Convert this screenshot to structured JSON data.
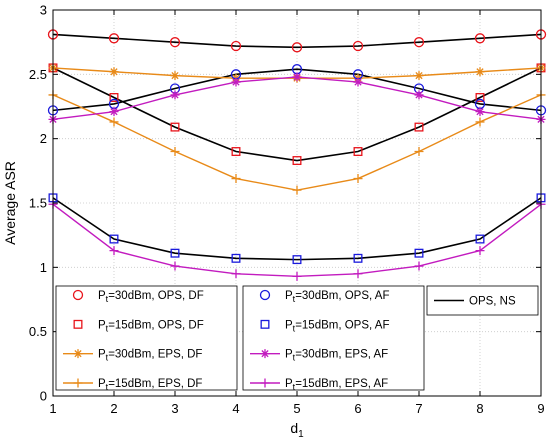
{
  "chart_data": {
    "type": "line",
    "title": "",
    "xlabel": "d",
    "xlabel_sub": "1",
    "ylabel": "Average ASR",
    "xlim": [
      1,
      9
    ],
    "ylim": [
      0,
      3
    ],
    "xticks": [
      "1",
      "2",
      "3",
      "4",
      "5",
      "6",
      "7",
      "8",
      "9"
    ],
    "yticks": [
      "0",
      "0.5",
      "1",
      "1.5",
      "2",
      "2.5",
      "3"
    ],
    "grid": true,
    "legend_placement": "bottom",
    "x": [
      1,
      2,
      3,
      4,
      5,
      6,
      7,
      8,
      9
    ],
    "series": [
      {
        "name": "=30dBm, OPS, DF",
        "color": "#e8141b",
        "marker": "circle",
        "line": false,
        "values": [
          2.81,
          2.78,
          2.75,
          2.72,
          2.71,
          2.72,
          2.75,
          2.78,
          2.81
        ]
      },
      {
        "name": "=15dBm, OPS, DF",
        "color": "#e8141b",
        "marker": "square",
        "line": false,
        "values": [
          2.55,
          2.32,
          2.09,
          1.9,
          1.83,
          1.9,
          2.09,
          2.32,
          2.55
        ]
      },
      {
        "name": "=30dBm, EPS, DF",
        "color": "#e88a18",
        "marker": "star",
        "line": true,
        "values": [
          2.55,
          2.52,
          2.49,
          2.47,
          2.47,
          2.47,
          2.49,
          2.52,
          2.55
        ]
      },
      {
        "name": "=15dBm, EPS, DF",
        "color": "#e88a18",
        "marker": "plus",
        "line": true,
        "values": [
          2.34,
          2.13,
          1.9,
          1.69,
          1.6,
          1.69,
          1.9,
          2.13,
          2.34
        ]
      },
      {
        "name": "=30dBm, OPS, AF",
        "color": "#1a1adc",
        "marker": "circle",
        "line": false,
        "values": [
          2.22,
          2.27,
          2.39,
          2.5,
          2.54,
          2.5,
          2.39,
          2.27,
          2.22
        ]
      },
      {
        "name": "=15dBm, OPS, AF",
        "color": "#1a1adc",
        "marker": "square",
        "line": false,
        "values": [
          1.54,
          1.22,
          1.11,
          1.07,
          1.06,
          1.07,
          1.11,
          1.22,
          1.54
        ]
      },
      {
        "name": "=30dBm, EPS, AF",
        "color": "#c21bbf",
        "marker": "star",
        "line": true,
        "values": [
          2.15,
          2.21,
          2.34,
          2.44,
          2.48,
          2.44,
          2.34,
          2.21,
          2.15
        ]
      },
      {
        "name": "=15dBm, EPS, AF",
        "color": "#c21bbf",
        "marker": "plus",
        "line": true,
        "values": [
          1.49,
          1.13,
          1.01,
          0.95,
          0.93,
          0.95,
          1.01,
          1.13,
          1.49
        ]
      },
      {
        "name": "OPS, NS",
        "color": "#000000",
        "marker": "none",
        "line": true,
        "groups": [
          [
            2.81,
            2.78,
            2.75,
            2.72,
            2.71,
            2.72,
            2.75,
            2.78,
            2.81
          ],
          [
            2.55,
            2.32,
            2.09,
            1.9,
            1.83,
            1.9,
            2.09,
            2.32,
            2.55
          ],
          [
            2.22,
            2.27,
            2.39,
            2.5,
            2.54,
            2.5,
            2.39,
            2.27,
            2.22
          ],
          [
            1.54,
            1.22,
            1.11,
            1.07,
            1.06,
            1.07,
            1.11,
            1.22,
            1.54
          ]
        ]
      }
    ],
    "legend": {
      "prefix": "P",
      "prefix_sub": "t",
      "columns": [
        [
          0,
          1,
          2,
          3
        ],
        [
          4,
          5,
          6,
          7
        ],
        [
          8
        ]
      ]
    }
  }
}
